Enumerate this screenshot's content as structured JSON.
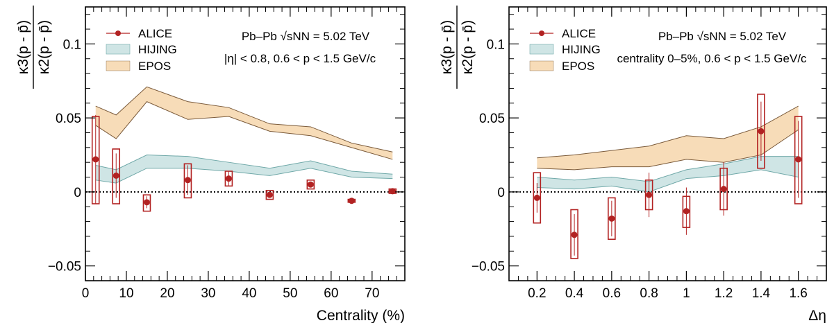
{
  "chart_data": [
    {
      "type": "line",
      "xlabel": "Centrality (%)",
      "ylabel_num": "κ3(p - p̄)",
      "ylabel_den": "κ2(p - p̄)",
      "xlim": [
        0,
        78
      ],
      "ylim": [
        -0.06,
        0.125
      ],
      "xticks": [
        0,
        10,
        20,
        30,
        40,
        50,
        60,
        70
      ],
      "yticks": [
        -0.05,
        0,
        0.05,
        0.1
      ],
      "ytick_labels": [
        "−0.05",
        "0",
        "0.05",
        "0.1"
      ],
      "annotation_line1": "Pb–Pb √sNN = 5.02 TeV",
      "annotation_line2": "|η| < 0.8, 0.6 < p < 1.5 GeV/c",
      "legend": [
        "ALICE",
        "HIJING",
        "EPOS"
      ],
      "colors": {
        "alice": "#b22222",
        "hijing_fill": "#cfe5e5",
        "hijing_line": "#6fa8a8",
        "epos_fill": "#f7dcb8",
        "epos_line": "#7a5a3a"
      },
      "alice": {
        "x": [
          2.5,
          7.5,
          15,
          25,
          35,
          45,
          55,
          65,
          75
        ],
        "y": [
          0.022,
          0.011,
          -0.007,
          0.008,
          0.009,
          -0.002,
          0.005,
          -0.006,
          0.0005
        ],
        "stat": [
          0.03,
          0.015,
          0.004,
          0.01,
          0.005,
          0.002,
          0.002,
          0.001,
          0.001
        ],
        "sys_low": [
          -0.008,
          -0.008,
          -0.013,
          -0.004,
          0.004,
          -0.005,
          0.002,
          -0.007,
          -0.001
        ],
        "sys_high": [
          0.051,
          0.029,
          -0.002,
          0.019,
          0.014,
          0.001,
          0.008,
          -0.005,
          0.002
        ]
      },
      "hijing": {
        "x": [
          2.5,
          7.5,
          15,
          25,
          35,
          45,
          55,
          65,
          75
        ],
        "low": [
          0.008,
          0.006,
          0.016,
          0.016,
          0.014,
          0.011,
          0.016,
          0.01,
          0.009
        ],
        "high": [
          0.018,
          0.015,
          0.025,
          0.024,
          0.02,
          0.016,
          0.021,
          0.014,
          0.012
        ]
      },
      "epos": {
        "x": [
          2.5,
          7.5,
          15,
          25,
          35,
          45,
          55,
          65,
          75
        ],
        "low": [
          0.045,
          0.036,
          0.061,
          0.049,
          0.051,
          0.041,
          0.038,
          0.03,
          0.022
        ],
        "high": [
          0.058,
          0.052,
          0.071,
          0.061,
          0.057,
          0.046,
          0.044,
          0.033,
          0.027
        ]
      }
    },
    {
      "type": "line",
      "xlabel": "Δη",
      "ylabel_num": "κ3(p - p̄)",
      "ylabel_den": "κ2(p - p̄)",
      "xlim": [
        0.05,
        1.75
      ],
      "ylim": [
        -0.06,
        0.125
      ],
      "xticks": [
        0.2,
        0.4,
        0.6,
        0.8,
        1,
        1.2,
        1.4,
        1.6
      ],
      "xtick_labels": [
        "0.2",
        "0.4",
        "0.6",
        "0.8",
        "1",
        "1.2",
        "1.4",
        "1.6"
      ],
      "yticks": [
        -0.05,
        0,
        0.05,
        0.1
      ],
      "ytick_labels": [
        "−0.05",
        "0",
        "0.05",
        "0.1"
      ],
      "annotation_line1": "Pb–Pb √sNN = 5.02 TeV",
      "annotation_line2": "centrality 0–5%, 0.6 < p < 1.5 GeV/c",
      "legend": [
        "ALICE",
        "HIJING",
        "EPOS"
      ],
      "alice": {
        "x": [
          0.2,
          0.4,
          0.6,
          0.8,
          1.0,
          1.2,
          1.4,
          1.6
        ],
        "y": [
          -0.004,
          -0.029,
          -0.018,
          -0.002,
          -0.013,
          0.002,
          0.041,
          0.022
        ],
        "stat": [
          0.01,
          0.014,
          0.012,
          0.015,
          0.016,
          0.018,
          0.02,
          0.026
        ],
        "sys_low": [
          -0.021,
          -0.045,
          -0.032,
          -0.012,
          -0.024,
          -0.012,
          0.016,
          -0.008
        ],
        "sys_high": [
          0.013,
          -0.012,
          -0.004,
          0.008,
          -0.003,
          0.016,
          0.066,
          0.051
        ]
      },
      "hijing": {
        "x": [
          0.2,
          0.4,
          0.6,
          0.8,
          1.0,
          1.2,
          1.4,
          1.6
        ],
        "low": [
          0.003,
          0.002,
          0.004,
          0.0,
          0.009,
          0.011,
          0.015,
          0.01
        ],
        "high": [
          0.01,
          0.008,
          0.01,
          0.007,
          0.015,
          0.019,
          0.024,
          0.024
        ]
      },
      "epos": {
        "x": [
          0.2,
          0.4,
          0.6,
          0.8,
          1.0,
          1.2,
          1.4,
          1.6
        ],
        "low": [
          0.016,
          0.015,
          0.017,
          0.017,
          0.022,
          0.02,
          0.025,
          0.042
        ],
        "high": [
          0.023,
          0.025,
          0.028,
          0.031,
          0.038,
          0.036,
          0.044,
          0.058
        ]
      }
    }
  ]
}
